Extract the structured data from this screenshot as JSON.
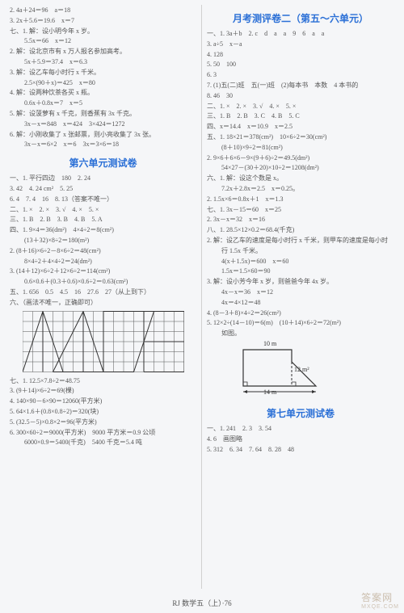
{
  "left": {
    "preLines": [
      "2. 4a＋24＝96　a＝18",
      "3. 2x＋5.6＝19.6　x＝7",
      "七、1. 解：设小明今年 x 岁。",
      "　5.5x＝66　x＝12",
      "2. 解：设北京市有 x 万人报名参加高考。",
      "　5x＋5.9＝37.4　x＝6.3",
      "3. 解：设乙车每小时行 x 千米。",
      "　2.5×(90＋x)＝425　x＝80",
      "4. 解：设两种饮茶各买 x 瓶。",
      "　0.6x＋0.8x＝7　x＝5",
      "5. 解：设菠萝有 x 千克，则香蕉有 3x 千克。",
      "　3x－x＝848　x＝424　3×424＝1272",
      "6. 解：小刚收集了 x 张邮票，则小亮收集了 3x 张。",
      "　3x－x＝6×2　x＝6　3x＝3×6＝18"
    ],
    "title6": "第六单元测试卷",
    "unit6": [
      "一、1. 平行四边　180　2. 24",
      "3. 42　4. 24 cm²　5. 25",
      "6. 4　7. 4　16　8. 13（答案不唯一）",
      "二、1. ×　2. ×　3. √　4. ×　5. ×",
      "三、1. B　2. B　3. B　4. B　5. A",
      "四、1. 9×4＝36(dm²)　4×4÷2＝8(cm²)",
      "　(13＋32)×8÷2＝180(m²)",
      "2. (8＋16)×6÷2－8×6÷2＝48(cm²)",
      "　8×4÷2＋4×4÷2＝24(dm²)",
      "3. (14＋12)×6÷2＋12×6÷2＝114(cm²)",
      "　0.6×0.6＋(0.3＋0.6)×0.6÷2＝0.63(cm²)",
      "五、1. 656　0.5　4.5　16　27.6　27（从上到下）",
      "六、（画法不唯一，正确即可）"
    ],
    "afterGrid": [
      "七、1. 12.5×7.8÷2＝48.75",
      "3. (9＋14)×6÷2＝69(棵)",
      "4. 140×90－6×90＝12060(平方米)",
      "5. 64×1.6＋(0.8×0.8÷2)＝320(块)",
      "5. (32.5－5)×0.8×2＝96(平方米)",
      "6. 300×60÷2＝9000(平方米)　9000 平方米＝0.9 公顷",
      "　6000×0.9＝5400(千克)　5400 千克＝5.4 吨"
    ],
    "grid": {
      "cols": 16,
      "rows": 6,
      "cell": 12.4,
      "stroke": "#555",
      "shapeStroke": "#333",
      "strokeWidth": 1,
      "polylines": [
        [
          [
            0,
            6
          ],
          [
            2,
            0
          ],
          [
            4,
            6
          ]
        ],
        [
          [
            2,
            6
          ],
          [
            2,
            0
          ]
        ],
        [
          [
            3,
            6
          ],
          [
            6,
            0
          ],
          [
            8,
            6
          ],
          [
            3,
            6
          ]
        ],
        [
          [
            6,
            0
          ],
          [
            6,
            6
          ]
        ],
        [
          [
            8,
            6
          ],
          [
            8,
            0
          ],
          [
            13,
            0
          ],
          [
            11,
            6
          ],
          [
            8,
            6
          ]
        ],
        [
          [
            12,
            6
          ],
          [
            12,
            0
          ],
          [
            16,
            0
          ],
          [
            16,
            6
          ],
          [
            12,
            6
          ]
        ],
        [
          [
            12,
            3
          ],
          [
            16,
            3
          ]
        ]
      ]
    }
  },
  "right": {
    "titleMonthly": "月考测评卷二（第五～六单元）",
    "monthly": [
      "一、1. 3a＋b　2. c　d　a　a　9　6　a　a",
      "3. a÷5　x－a",
      "4. 128",
      "5. 50　100",
      "6. 3",
      "7. (1)五(二)班　五(一)班　(2)每本书　本数　4 本书的",
      "8. 46　30",
      "二、1. ×　2. ×　3. √　4. ×　5. ×",
      "三、1. B　2. B　3. C　4. B　5. C",
      "四、x＝14.4　x＝10.9　x＝2.5",
      "五、1. 18×21＝378(cm²)　10×6÷2＝30(cm²)",
      "　(8＋10)×9÷2＝81(cm²)",
      "2. 9×6＋6×6－9×(9＋6)÷2＝49.5(dm²)",
      "　54×27－(30＋20)×10÷2＝1208(dm²)",
      "六、1. 解：设这个数是 x。",
      "　7.2x＋2.8x＝2.5　x＝0.25。",
      "2. 1.5x×6＝0.8x＋1　x＝1.3",
      "七、1. 3x－15＝60　x＝25",
      "2. 3x－x＝32　x＝16",
      "八、1. 28.5×12×0.2＝68.4(千克)",
      "2. 解：设乙车的速度是每小时行 x 千米，则甲车的速度是每小时",
      "　行 1.5x 千米。",
      "　4(x＋1.5x)＝600　x＝60",
      "　1.5x＝1.5×60＝90",
      "3. 解：设小芳今年 x 岁，则爸爸今年 4x 岁。",
      "　4x－x＝36　x＝12",
      "　4x＝4×12＝48",
      "4. (8－3＋8)×4÷2＝26(cm²)",
      "5. 12×2÷(14－10)＝6(m)　(10＋14)×6÷2＝72(m²)",
      "　如图。"
    ],
    "trap": {
      "labels": {
        "top": "10 m",
        "right": "12 m²",
        "bottom": "14 m"
      },
      "stroke": "#333"
    },
    "title7": "第七单元测试卷",
    "unit7": [
      "一、1. 241　2. 3　3. 54",
      "4. 6　画图略",
      "5. 312　6. 34　7. 64　8. 28　48"
    ]
  },
  "footer": "RJ 数学五（上）·76",
  "watermark": {
    "big": "答案网",
    "small": "MXQE.COM"
  }
}
